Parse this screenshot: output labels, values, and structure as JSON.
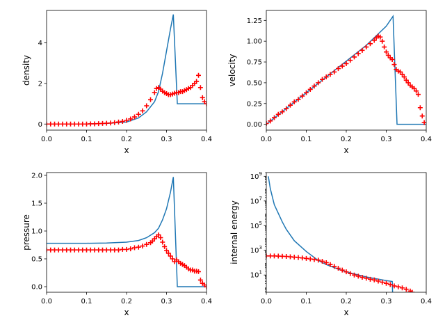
{
  "chart_data": [
    {
      "type": "line+scatter",
      "xlabel": "x",
      "ylabel": "density",
      "xlim": [
        0,
        0.4
      ],
      "ylim": [
        -0.3,
        5.6
      ],
      "yscale": "linear",
      "xticks": [
        0.0,
        0.1,
        0.2,
        0.3,
        0.4
      ],
      "xtick_labels": [
        "0.0",
        "0.1",
        "0.2",
        "0.3",
        "0.4"
      ],
      "yticks": [
        0,
        2,
        4
      ],
      "ytick_labels": [
        "0",
        "2",
        "4"
      ],
      "line_color": "#1f77b4",
      "marker_color": "#ff0000",
      "line": {
        "x": [
          0,
          0.1,
          0.15,
          0.2,
          0.23,
          0.25,
          0.27,
          0.28,
          0.29,
          0.3,
          0.31,
          0.317,
          0.327,
          0.4
        ],
        "y": [
          0,
          0,
          0.03,
          0.1,
          0.3,
          0.6,
          1.1,
          1.6,
          2.5,
          3.6,
          4.7,
          5.4,
          1.0,
          1.0
        ]
      },
      "points": {
        "x": [
          0.0,
          0.01,
          0.02,
          0.03,
          0.04,
          0.05,
          0.06,
          0.07,
          0.08,
          0.09,
          0.1,
          0.11,
          0.12,
          0.13,
          0.14,
          0.15,
          0.16,
          0.17,
          0.18,
          0.19,
          0.2,
          0.21,
          0.22,
          0.23,
          0.24,
          0.25,
          0.26,
          0.27,
          0.275,
          0.28,
          0.285,
          0.29,
          0.295,
          0.3,
          0.305,
          0.31,
          0.315,
          0.32,
          0.325,
          0.33,
          0.335,
          0.34,
          0.345,
          0.35,
          0.355,
          0.36,
          0.365,
          0.37,
          0.375,
          0.38,
          0.385,
          0.39,
          0.395,
          0.4
        ],
        "y": [
          0.0,
          0.0,
          0.0,
          0.0,
          0.0,
          0.0,
          0.0,
          0.0,
          0.0,
          0.0,
          0.0,
          0.01,
          0.01,
          0.02,
          0.03,
          0.04,
          0.05,
          0.07,
          0.1,
          0.13,
          0.18,
          0.25,
          0.35,
          0.48,
          0.65,
          0.9,
          1.2,
          1.55,
          1.75,
          1.8,
          1.72,
          1.62,
          1.55,
          1.5,
          1.45,
          1.45,
          1.48,
          1.52,
          1.55,
          1.55,
          1.6,
          1.6,
          1.65,
          1.7,
          1.75,
          1.8,
          1.9,
          2.0,
          2.1,
          2.4,
          1.8,
          1.3,
          1.1,
          1.0
        ]
      }
    },
    {
      "type": "line+scatter",
      "xlabel": "x",
      "ylabel": "velocity",
      "xlim": [
        0,
        0.4
      ],
      "ylim": [
        -0.07,
        1.37
      ],
      "yscale": "linear",
      "xticks": [
        0.0,
        0.1,
        0.2,
        0.3,
        0.4
      ],
      "xtick_labels": [
        "0.0",
        "0.1",
        "0.2",
        "0.3",
        "0.4"
      ],
      "yticks": [
        0,
        0.25,
        0.5,
        0.75,
        1.0,
        1.25
      ],
      "ytick_labels": [
        "0.00",
        "0.25",
        "0.50",
        "0.75",
        "1.00",
        "1.25"
      ],
      "line_color": "#1f77b4",
      "marker_color": "#ff0000",
      "line": {
        "x": [
          0,
          0.05,
          0.1,
          0.15,
          0.2,
          0.25,
          0.3,
          0.317,
          0.327,
          0.4
        ],
        "y": [
          0,
          0.19,
          0.38,
          0.57,
          0.76,
          0.95,
          1.18,
          1.3,
          0.0,
          0.0
        ]
      },
      "points": {
        "x": [
          0.0,
          0.01,
          0.02,
          0.03,
          0.04,
          0.05,
          0.06,
          0.07,
          0.08,
          0.09,
          0.1,
          0.11,
          0.12,
          0.13,
          0.14,
          0.15,
          0.16,
          0.17,
          0.18,
          0.19,
          0.2,
          0.21,
          0.22,
          0.23,
          0.24,
          0.25,
          0.26,
          0.27,
          0.275,
          0.28,
          0.285,
          0.29,
          0.295,
          0.3,
          0.305,
          0.31,
          0.315,
          0.32,
          0.325,
          0.33,
          0.335,
          0.34,
          0.345,
          0.35,
          0.355,
          0.36,
          0.365,
          0.37,
          0.375,
          0.38,
          0.385,
          0.39,
          0.395
        ],
        "y": [
          0.01,
          0.04,
          0.08,
          0.12,
          0.15,
          0.19,
          0.23,
          0.27,
          0.3,
          0.34,
          0.38,
          0.42,
          0.46,
          0.5,
          0.54,
          0.57,
          0.6,
          0.63,
          0.67,
          0.7,
          0.73,
          0.77,
          0.81,
          0.85,
          0.89,
          0.93,
          0.97,
          1.01,
          1.04,
          1.06,
          1.05,
          1.0,
          0.93,
          0.87,
          0.83,
          0.8,
          0.78,
          0.72,
          0.66,
          0.64,
          0.63,
          0.6,
          0.57,
          0.53,
          0.5,
          0.47,
          0.45,
          0.43,
          0.4,
          0.36,
          0.2,
          0.1,
          0.02
        ]
      }
    },
    {
      "type": "line+scatter",
      "xlabel": "x",
      "ylabel": "pressure",
      "xlim": [
        0,
        0.4
      ],
      "ylim": [
        -0.1,
        2.05
      ],
      "yscale": "linear",
      "xticks": [
        0.0,
        0.1,
        0.2,
        0.3,
        0.4
      ],
      "xtick_labels": [
        "0.0",
        "0.1",
        "0.2",
        "0.3",
        "0.4"
      ],
      "yticks": [
        0,
        0.5,
        1.0,
        1.5,
        2.0
      ],
      "ytick_labels": [
        "0.0",
        "0.5",
        "1.0",
        "1.5",
        "2.0"
      ],
      "line_color": "#1f77b4",
      "marker_color": "#ff0000",
      "line": {
        "x": [
          0,
          0.1,
          0.15,
          0.2,
          0.23,
          0.25,
          0.27,
          0.28,
          0.29,
          0.3,
          0.31,
          0.317,
          0.327,
          0.4
        ],
        "y": [
          0.78,
          0.78,
          0.785,
          0.8,
          0.83,
          0.88,
          0.97,
          1.05,
          1.2,
          1.4,
          1.7,
          1.97,
          0.0,
          0.0
        ]
      },
      "points": {
        "x": [
          0.0,
          0.01,
          0.02,
          0.03,
          0.04,
          0.05,
          0.06,
          0.07,
          0.08,
          0.09,
          0.1,
          0.11,
          0.12,
          0.13,
          0.14,
          0.15,
          0.16,
          0.17,
          0.18,
          0.19,
          0.2,
          0.21,
          0.22,
          0.23,
          0.24,
          0.25,
          0.26,
          0.265,
          0.27,
          0.275,
          0.28,
          0.285,
          0.29,
          0.295,
          0.3,
          0.305,
          0.31,
          0.315,
          0.32,
          0.325,
          0.33,
          0.335,
          0.34,
          0.345,
          0.35,
          0.355,
          0.36,
          0.365,
          0.37,
          0.375,
          0.38,
          0.385,
          0.39,
          0.395,
          0.4
        ],
        "y": [
          0.66,
          0.66,
          0.66,
          0.66,
          0.66,
          0.66,
          0.66,
          0.66,
          0.66,
          0.66,
          0.66,
          0.66,
          0.66,
          0.66,
          0.66,
          0.66,
          0.66,
          0.66,
          0.66,
          0.67,
          0.67,
          0.68,
          0.7,
          0.71,
          0.73,
          0.76,
          0.79,
          0.82,
          0.86,
          0.9,
          0.93,
          0.88,
          0.8,
          0.72,
          0.65,
          0.6,
          0.55,
          0.5,
          0.45,
          0.48,
          0.45,
          0.42,
          0.4,
          0.38,
          0.35,
          0.32,
          0.3,
          0.3,
          0.28,
          0.28,
          0.27,
          0.12,
          0.06,
          0.03,
          0.0
        ]
      }
    },
    {
      "type": "line+scatter",
      "xlabel": "x",
      "ylabel": "internal energy",
      "xlim": [
        0,
        0.4
      ],
      "ylim": [
        0.4,
        2000000000
      ],
      "yscale": "log",
      "xticks": [
        0.0,
        0.1,
        0.2,
        0.3,
        0.4
      ],
      "xtick_labels": [
        "0.0",
        "0.1",
        "0.2",
        "0.3",
        "0.4"
      ],
      "yticks": [
        10,
        1000,
        100000,
        10000000,
        1000000000
      ],
      "ytick_labels": [
        "10^1",
        "10^3",
        "10^5",
        "10^7",
        "10^9"
      ],
      "line_color": "#1f77b4",
      "marker_color": "#ff0000",
      "line": {
        "x": [
          0.005,
          0.01,
          0.02,
          0.03,
          0.04,
          0.05,
          0.07,
          0.1,
          0.13,
          0.15,
          0.18,
          0.2,
          0.25,
          0.3,
          0.315,
          0.316
        ],
        "y": [
          1000000000,
          100000000,
          5000000,
          1000000,
          200000,
          50000,
          6000,
          800,
          150,
          70,
          30,
          18,
          7,
          3.5,
          3,
          0.3
        ]
      },
      "points": {
        "x": [
          0.0,
          0.01,
          0.02,
          0.03,
          0.04,
          0.05,
          0.06,
          0.07,
          0.08,
          0.09,
          0.1,
          0.11,
          0.12,
          0.13,
          0.14,
          0.15,
          0.16,
          0.17,
          0.18,
          0.19,
          0.2,
          0.21,
          0.22,
          0.23,
          0.24,
          0.25,
          0.26,
          0.27,
          0.28,
          0.29,
          0.3,
          0.31,
          0.32,
          0.33,
          0.34,
          0.35,
          0.36,
          0.365
        ],
        "y": [
          350,
          350,
          350,
          340,
          330,
          320,
          300,
          280,
          260,
          240,
          220,
          200,
          180,
          160,
          130,
          100,
          70,
          50,
          35,
          25,
          18,
          13,
          10,
          8,
          6.5,
          5.5,
          4.5,
          4,
          3.2,
          2.6,
          2.1,
          1.7,
          1.3,
          1.1,
          0.9,
          0.7,
          0.5,
          0.4
        ]
      }
    }
  ]
}
